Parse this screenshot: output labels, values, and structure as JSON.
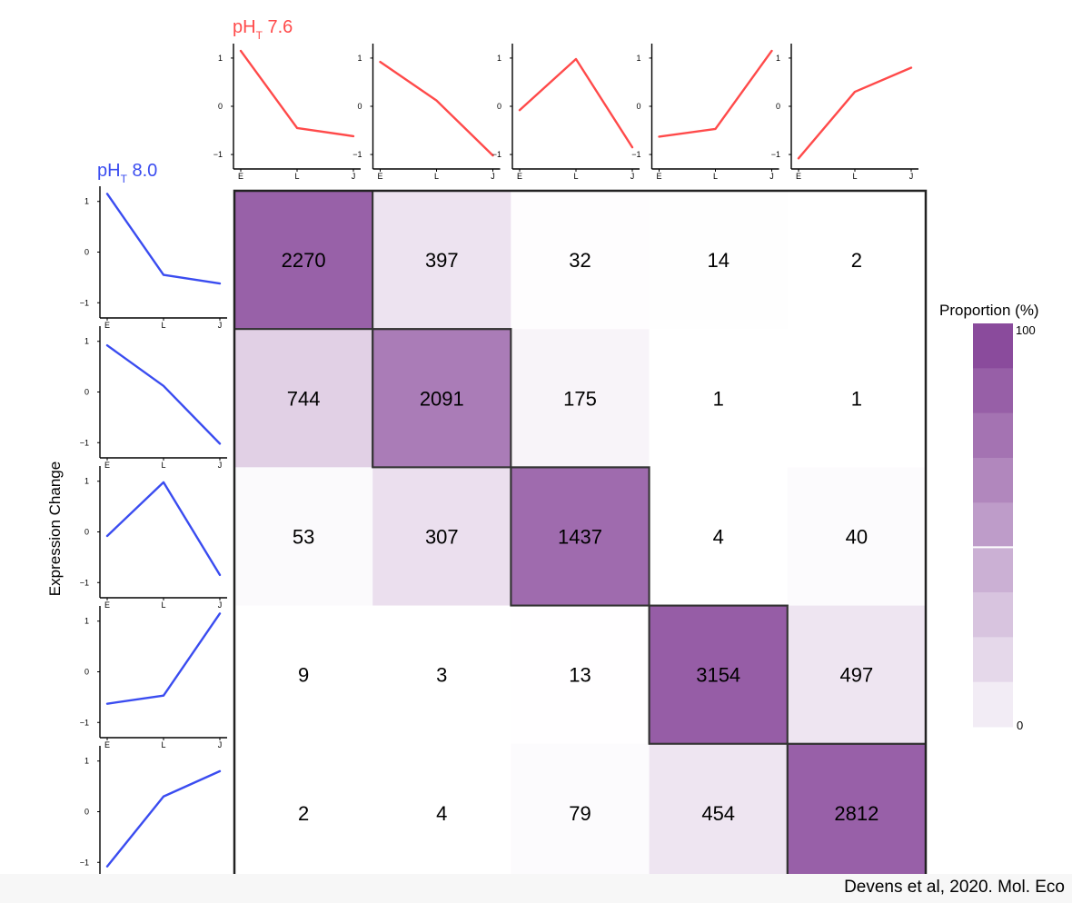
{
  "chart_data": {
    "type": "heatmap",
    "col_group_label": {
      "main": "pH",
      "sub": "T",
      "value": " 7.6",
      "color": "#ff4a4a"
    },
    "row_group_label": {
      "main": "pH",
      "sub": "T",
      "value": " 8.0",
      "color": "#3a4cf0"
    },
    "ylabel": "Expression Change",
    "x_stage_ticks": [
      "E",
      "L",
      "J"
    ],
    "y_ticks": [
      "1",
      "0",
      "−1"
    ],
    "y_tick_values": [
      1,
      0,
      -1
    ],
    "cluster_profiles": [
      [
        1.15,
        -0.45,
        -0.62
      ],
      [
        0.92,
        0.12,
        -1.02
      ],
      [
        -0.08,
        0.98,
        -0.85
      ],
      [
        -0.63,
        -0.47,
        1.15
      ],
      [
        -1.08,
        0.3,
        0.8
      ]
    ],
    "cells": [
      [
        2270,
        397,
        32,
        14,
        2
      ],
      [
        744,
        2091,
        175,
        1,
        1
      ],
      [
        53,
        307,
        1437,
        4,
        40
      ],
      [
        9,
        3,
        13,
        3154,
        497
      ],
      [
        2,
        4,
        79,
        454,
        2812
      ]
    ],
    "color_scale": {
      "title": "Proportion (%)",
      "min_label": "0",
      "max_label": "100",
      "low": "#ffffff",
      "high": "#8a4b9c"
    }
  },
  "citation": "Devens et al, 2020. Mol. Eco"
}
